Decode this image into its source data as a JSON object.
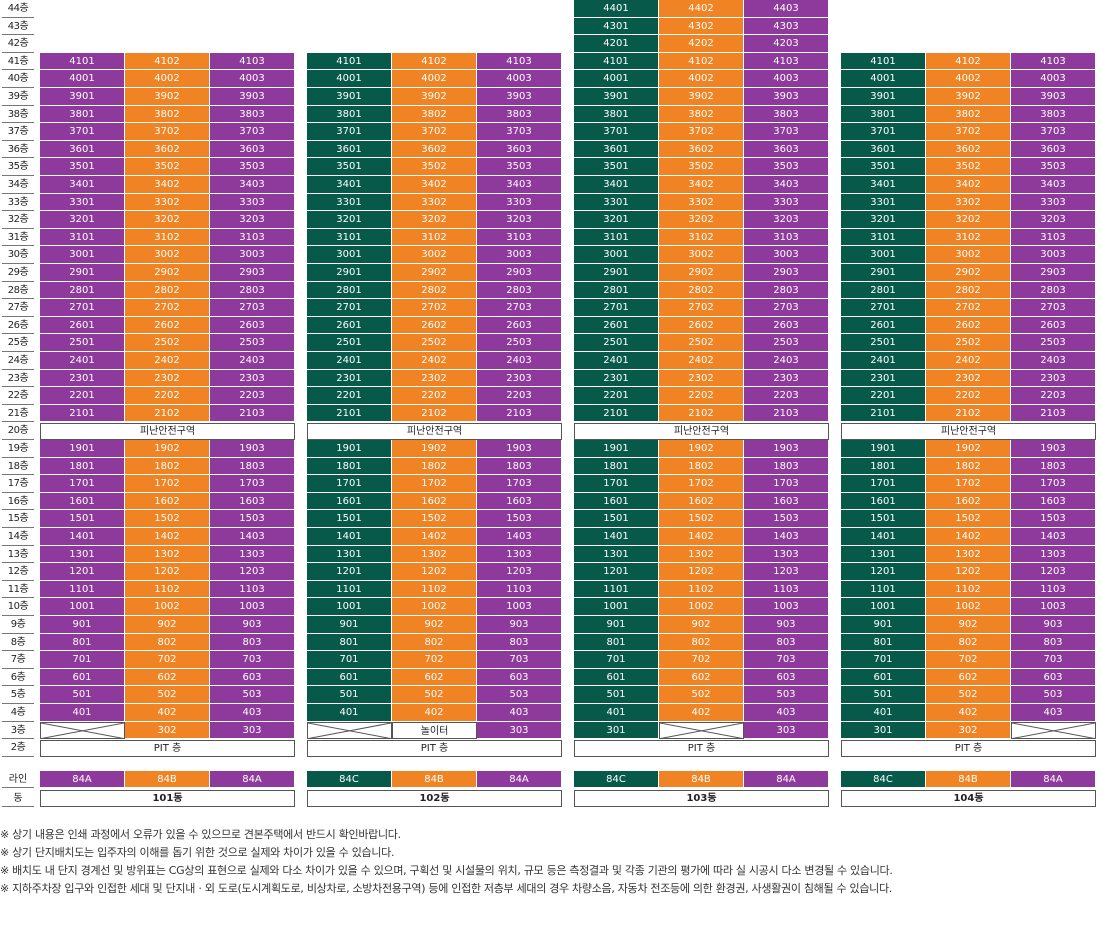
{
  "floors": [
    "44층",
    "43층",
    "42층",
    "41층",
    "40층",
    "39층",
    "38층",
    "37층",
    "36층",
    "35층",
    "34층",
    "33층",
    "32층",
    "31층",
    "30층",
    "29층",
    "28층",
    "27층",
    "26층",
    "25층",
    "24층",
    "23층",
    "22층",
    "21층",
    "20층",
    "19층",
    "18층",
    "17층",
    "16층",
    "15층",
    "14층",
    "13층",
    "12층",
    "11층",
    "10층",
    "9층",
    "8층",
    "7층",
    "6층",
    "5층",
    "4층",
    "3층",
    "2층"
  ],
  "refuge_label": "피난안전구역",
  "pit_label": "PIT 층",
  "playground_label": "놀이터",
  "line_row_label": "라인",
  "dong_row_label": "동",
  "colors": {
    "purple": "#8e3a9c",
    "orange": "#f08424",
    "green": "#075a4a"
  },
  "buildings": [
    {
      "name": "101동",
      "top_floor": 41,
      "lines": [
        "84A",
        "84B",
        "84A"
      ],
      "line_colors": [
        "purple",
        "orange",
        "purple"
      ],
      "floor3": [
        "x",
        "302",
        "303"
      ]
    },
    {
      "name": "102동",
      "top_floor": 41,
      "lines": [
        "84C",
        "84B",
        "84A"
      ],
      "line_colors": [
        "green",
        "orange",
        "purple"
      ],
      "floor3": [
        "x",
        "playground",
        "303"
      ]
    },
    {
      "name": "103동",
      "top_floor": 44,
      "lines": [
        "84C",
        "84B",
        "84A"
      ],
      "line_colors": [
        "green",
        "orange",
        "purple"
      ],
      "floor3": [
        "301",
        "x",
        "303"
      ]
    },
    {
      "name": "104동",
      "top_floor": 41,
      "lines": [
        "84C",
        "84B",
        "84A"
      ],
      "line_colors": [
        "green",
        "orange",
        "purple"
      ],
      "floor3": [
        "301",
        "302",
        "x"
      ]
    }
  ],
  "notes": [
    "※ 상기 내용은 인쇄 과정에서 오류가 있을 수 있으므로 견본주택에서 반드시 확인바랍니다.",
    "※ 상기 단지배치도는 입주자의 이해를 돕기 위한 것으로 실제와 차이가 있을 수 있습니다.",
    "※ 배치도 내 단지 경계선 및 방위표는 CG상의 표현으로 실제와 다소 차이가 있을 수 있으며, 구획선 및 시설물의 위치, 규모 등은 측정결과 및 각종 기관의 평가에 따라 실 시공시 다소 변경될 수 있습니다.",
    "※ 지하주차장 입구와 인접한 세대 및 단지내ㆍ외 도로(도시계획도로, 비상차로, 소방차전용구역) 등에 인접한 저층부 세대의 경우 차량소음, 자동차 전조등에 의한 환경권, 사생활권이 침해될 수 있습니다."
  ]
}
